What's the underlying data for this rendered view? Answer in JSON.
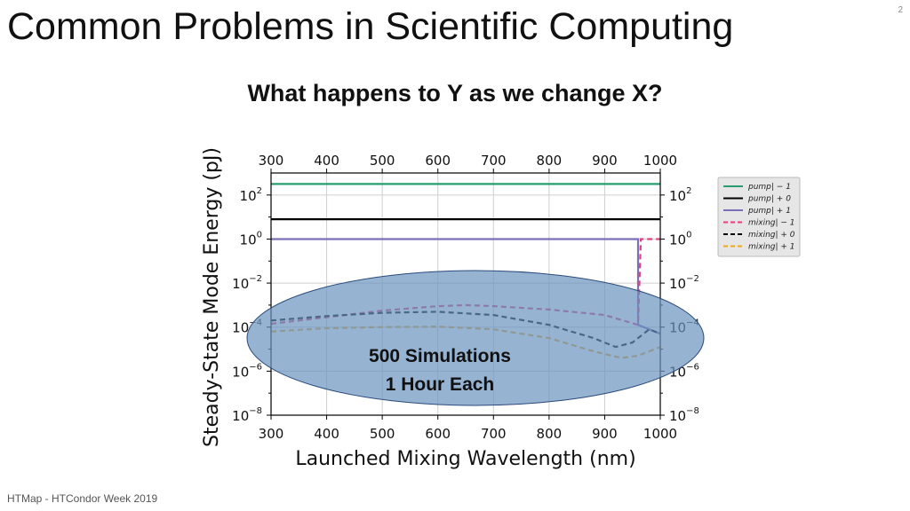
{
  "slide": {
    "title": "Common Problems in Scientific Computing",
    "page_number": "2",
    "footer": "HTMap - HTCondor Week 2019"
  },
  "chart_data": {
    "type": "line",
    "title": "What happens to Y as we change X?",
    "xlabel": "Launched Mixing Wavelength (nm)",
    "ylabel": "Steady-State Mode Energy (pJ)",
    "xlim": [
      300,
      1000
    ],
    "ylim_log10": [
      -8,
      3
    ],
    "yscale": "log",
    "x_ticks": [
      "300",
      "400",
      "500",
      "600",
      "700",
      "800",
      "900",
      "1000"
    ],
    "y_ticks": [
      {
        "base": "10",
        "exp": "2",
        "log10": 2
      },
      {
        "base": "10",
        "exp": "0",
        "log10": 0
      },
      {
        "base": "10",
        "exp": "−2",
        "log10": -2
      },
      {
        "base": "10",
        "exp": "−4",
        "log10": -4
      },
      {
        "base": "10",
        "exp": "−6",
        "log10": -6
      },
      {
        "base": "10",
        "exp": "−8",
        "log10": -8
      }
    ],
    "legend_position": "outside-right",
    "grid": true,
    "series": [
      {
        "name": "pump| − 1",
        "label": "pump",
        "suffix": "| − 1",
        "color": "#2a9d6e",
        "dash": false,
        "x": [
          300,
          1000
        ],
        "log10_y": [
          2.5,
          2.5
        ]
      },
      {
        "name": "pump| + 0",
        "label": "pump",
        "suffix": "| + 0",
        "color": "#000000",
        "dash": false,
        "x": [
          300,
          1000
        ],
        "log10_y": [
          0.9,
          0.9
        ]
      },
      {
        "name": "pump| + 1",
        "label": "pump",
        "suffix": "| + 1",
        "color": "#7b6fb8",
        "dash": false,
        "x": [
          300,
          960,
          960,
          1000
        ],
        "log10_y": [
          0,
          0,
          -3.9,
          -4.3
        ]
      },
      {
        "name": "mixing| − 1",
        "label": "mixing",
        "suffix": "| − 1",
        "color": "#e0417f",
        "dash": true,
        "x": [
          300,
          400,
          500,
          600,
          650,
          700,
          800,
          900,
          960,
          965,
          1000
        ],
        "log10_y": [
          -3.85,
          -3.55,
          -3.25,
          -3.05,
          -3.0,
          -3.05,
          -3.2,
          -3.45,
          -3.9,
          0,
          0
        ]
      },
      {
        "name": "mixing| + 0",
        "label": "mixing",
        "suffix": "| + 0",
        "color": "#000000",
        "dash": true,
        "x": [
          300,
          400,
          500,
          600,
          700,
          800,
          880,
          920,
          950,
          980,
          1000
        ],
        "log10_y": [
          -3.7,
          -3.5,
          -3.35,
          -3.3,
          -3.45,
          -3.9,
          -4.5,
          -4.9,
          -4.7,
          -4.1,
          -4.3
        ]
      },
      {
        "name": "mixing| + 1",
        "label": "mixing",
        "suffix": "| + 1",
        "color": "#e8a92a",
        "dash": true,
        "x": [
          300,
          400,
          500,
          600,
          700,
          800,
          880,
          930,
          960,
          1000
        ],
        "log10_y": [
          -4.2,
          -4.05,
          -4.0,
          -3.98,
          -4.1,
          -4.5,
          -5.1,
          -5.4,
          -5.3,
          -4.9
        ]
      }
    ],
    "overlay": {
      "line1": "500 Simulations",
      "line2": "1 Hour Each",
      "color": "#6a93bf"
    }
  }
}
